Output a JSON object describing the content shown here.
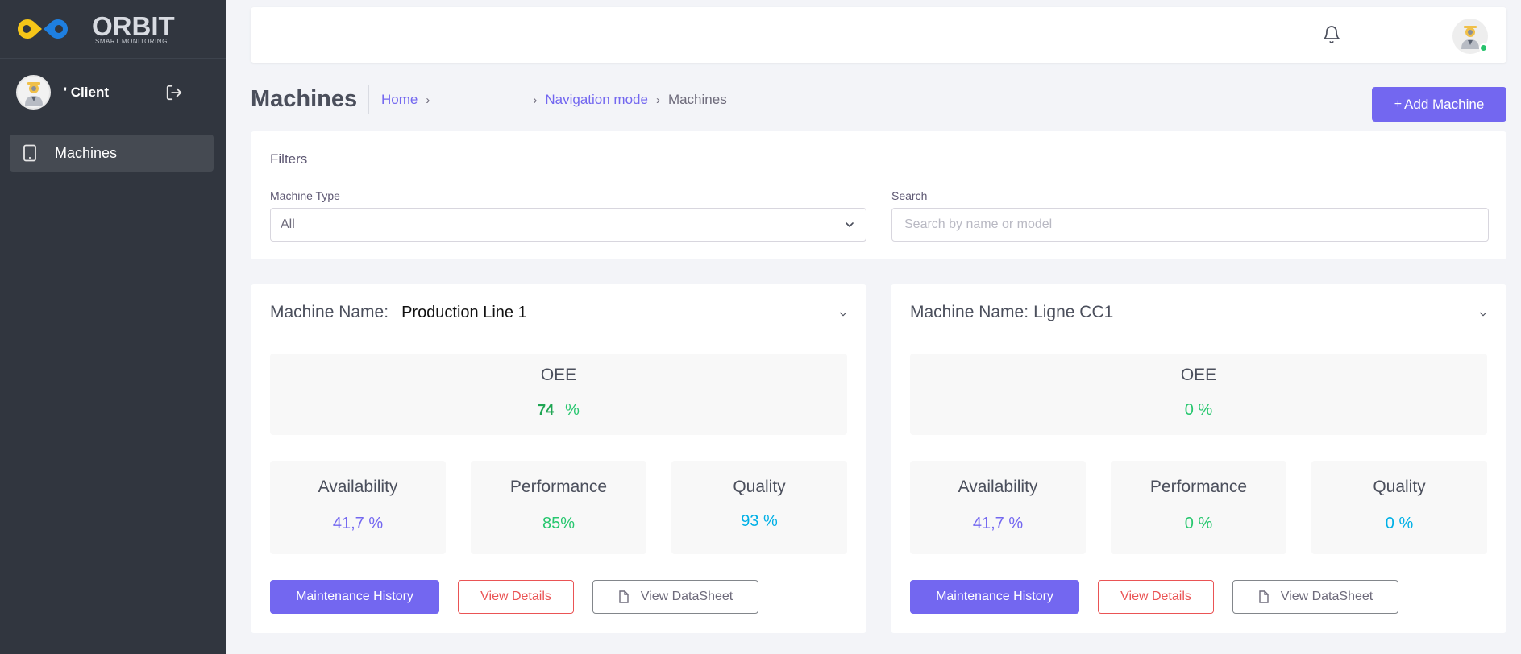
{
  "brand": {
    "name": "ORBIT",
    "tagline": "SMART MONITORING"
  },
  "user": {
    "name": "' Client"
  },
  "sidebar": {
    "items": [
      {
        "label": "Machines",
        "icon": "tablet-icon",
        "active": true
      }
    ]
  },
  "page": {
    "title": "Machines",
    "breadcrumb": {
      "home": "Home",
      "mode": "Navigation mode",
      "current": "Machines"
    },
    "add_button": "Add Machine"
  },
  "filters": {
    "title": "Filters",
    "machine_type": {
      "label": "Machine Type",
      "value": "All"
    },
    "search": {
      "label": "Search",
      "placeholder": "Search by name or model"
    }
  },
  "machines": [
    {
      "name_label": "Machine Name:",
      "name": "Production Line 1",
      "oee": {
        "label": "OEE",
        "value": "74",
        "unit": "%"
      },
      "availability": {
        "label": "Availability",
        "value": "41,7",
        "unit": "%"
      },
      "performance": {
        "label": "Performance",
        "value": "85",
        "unit": "%"
      },
      "quality": {
        "label": "Quality",
        "value": "93",
        "unit": "%"
      },
      "buttons": {
        "maintenance": "Maintenance History",
        "details": "View Details",
        "datasheet": "View DataSheet"
      }
    },
    {
      "name_label": "Machine Name:",
      "name": "Ligne CC1",
      "oee": {
        "label": "OEE",
        "value": "0",
        "unit": "%"
      },
      "availability": {
        "label": "Availability",
        "value": "41,7",
        "unit": "%"
      },
      "performance": {
        "label": "Performance",
        "value": "0",
        "unit": "%"
      },
      "quality": {
        "label": "Quality",
        "value": "0",
        "unit": "%"
      },
      "buttons": {
        "maintenance": "Maintenance History",
        "details": "View Details",
        "datasheet": "View DataSheet"
      }
    }
  ],
  "colors": {
    "primary": "#7367f0",
    "success": "#28c76f",
    "danger": "#ea5455",
    "info": "#00b0e6",
    "sidebar": "#31363f"
  }
}
